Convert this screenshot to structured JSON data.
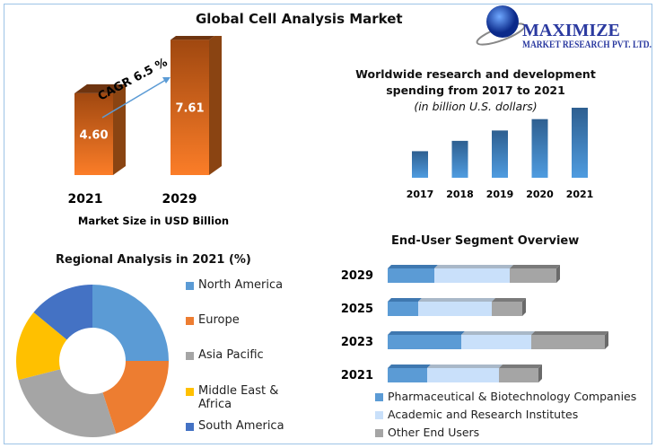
{
  "title": "Global Cell Analysis Market",
  "logo": {
    "name": "MAXIMIZE",
    "sub": "MARKET RESEARCH PVT. LTD.",
    "icon": "globe-icon"
  },
  "chart_data": [
    {
      "type": "bar",
      "categories": [
        "2021",
        "2029"
      ],
      "values": [
        4.6,
        7.61
      ],
      "value_labels": [
        "4.60",
        "7.61"
      ],
      "xlabel": "Market Size in USD Billion",
      "annotation": "CAGR 6.5 %",
      "color": "#ed7d31"
    },
    {
      "type": "bar",
      "title": "Worldwide research and development spending from 2017 to 2021",
      "title_line1": "Worldwide research and development",
      "title_line2": "spending from 2017 to 2021",
      "subtitle": "(in billion U.S. dollars)",
      "categories": [
        "2017",
        "2018",
        "2019",
        "2020",
        "2021"
      ],
      "values": [
        77,
        107,
        137,
        170,
        203
      ],
      "color": "#3d7cc0"
    },
    {
      "type": "pie",
      "title": "Regional Analysis in 2021 (%)",
      "categories": [
        "North America",
        "Europe",
        "Asia Pacific",
        "Middle East & Africa",
        "South America"
      ],
      "legend_lines": [
        [
          "North America"
        ],
        [
          "Europe"
        ],
        [
          "Asia Pacific"
        ],
        [
          "Middle East &",
          "Africa"
        ],
        [
          "South America"
        ]
      ],
      "values": [
        25,
        20,
        26,
        15,
        14
      ],
      "colors": [
        "#5b9bd5",
        "#ed7d31",
        "#a5a5a5",
        "#ffc000",
        "#4472c4"
      ],
      "legend": "right"
    },
    {
      "type": "bar",
      "orientation": "horizontal-stacked",
      "title": "End-User Segment Overview",
      "categories": [
        "2029",
        "2025",
        "2023",
        "2021"
      ],
      "series": [
        {
          "name": "Pharmaceutical & Biotechnology Companies",
          "values": [
            52,
            34,
            82,
            44
          ],
          "color": "#5b9bd5"
        },
        {
          "name": "Academic and Research Institutes",
          "values": [
            84,
            82,
            78,
            80
          ],
          "color": "#c9e0fa"
        },
        {
          "name": "Other End Users",
          "values": [
            52,
            34,
            82,
            44
          ],
          "color": "#a5a5a5"
        }
      ],
      "legend": "bottom"
    }
  ]
}
